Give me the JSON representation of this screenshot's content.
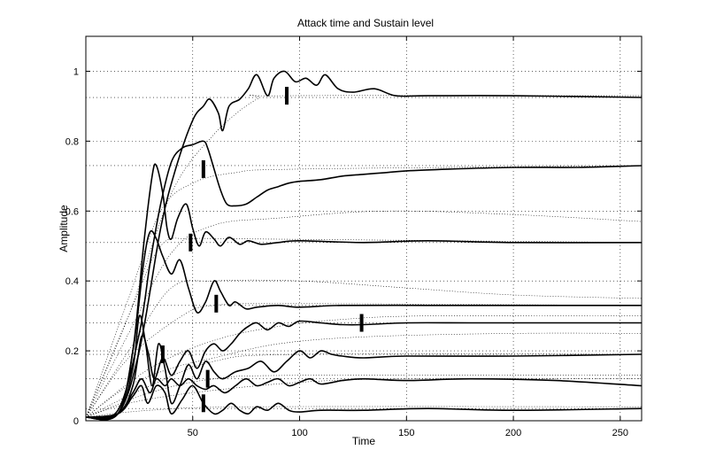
{
  "chart_data": {
    "type": "line",
    "title": "Attack time and Sustain level",
    "xlabel": "Time",
    "ylabel": "Amplitude",
    "xlim": [
      0,
      260
    ],
    "ylim": [
      0,
      1.1
    ],
    "xticks": [
      50,
      100,
      150,
      200,
      250
    ],
    "yticks": [
      0,
      0.2,
      0.4,
      0.6,
      0.8,
      1
    ],
    "ytick_labels": [
      "0",
      "0.2",
      "0.4",
      "0.6",
      "0.8",
      "1"
    ],
    "grid": true,
    "line_color": "#000000",
    "series": [
      {
        "points": [
          [
            0,
            0.01
          ],
          [
            15,
            0.02
          ],
          [
            25,
            0.2
          ],
          [
            35,
            0.55
          ],
          [
            42,
            0.72
          ],
          [
            50,
            0.86
          ],
          [
            55,
            0.9
          ],
          [
            58,
            0.92
          ],
          [
            62,
            0.88
          ],
          [
            64,
            0.83
          ],
          [
            67,
            0.9
          ],
          [
            72,
            0.92
          ],
          [
            76,
            0.95
          ],
          [
            80,
            0.99
          ],
          [
            85,
            0.93
          ],
          [
            88,
            0.98
          ],
          [
            93,
            1.0
          ],
          [
            98,
            0.97
          ],
          [
            103,
            0.98
          ],
          [
            108,
            0.96
          ],
          [
            112,
            0.99
          ],
          [
            118,
            0.95
          ],
          [
            125,
            0.94
          ],
          [
            135,
            0.95
          ],
          [
            145,
            0.93
          ],
          [
            160,
            0.93
          ],
          [
            200,
            0.93
          ],
          [
            260,
            0.925
          ]
        ]
      },
      {
        "points": [
          [
            0,
            0.01
          ],
          [
            15,
            0.03
          ],
          [
            25,
            0.25
          ],
          [
            30,
            0.45
          ],
          [
            35,
            0.62
          ],
          [
            40,
            0.74
          ],
          [
            45,
            0.78
          ],
          [
            50,
            0.79
          ],
          [
            55,
            0.8
          ],
          [
            57,
            0.78
          ],
          [
            60,
            0.72
          ],
          [
            63,
            0.66
          ],
          [
            66,
            0.62
          ],
          [
            70,
            0.615
          ],
          [
            75,
            0.62
          ],
          [
            80,
            0.64
          ],
          [
            85,
            0.66
          ],
          [
            90,
            0.67
          ],
          [
            95,
            0.68
          ],
          [
            100,
            0.685
          ],
          [
            110,
            0.69
          ],
          [
            120,
            0.7
          ],
          [
            130,
            0.705
          ],
          [
            140,
            0.71
          ],
          [
            150,
            0.715
          ],
          [
            170,
            0.72
          ],
          [
            200,
            0.725
          ],
          [
            230,
            0.725
          ],
          [
            260,
            0.73
          ]
        ]
      },
      {
        "points": [
          [
            0,
            0.01
          ],
          [
            15,
            0.02
          ],
          [
            22,
            0.2
          ],
          [
            27,
            0.5
          ],
          [
            31,
            0.7
          ],
          [
            33,
            0.73
          ],
          [
            36,
            0.65
          ],
          [
            38,
            0.55
          ],
          [
            40,
            0.52
          ],
          [
            43,
            0.58
          ],
          [
            47,
            0.62
          ],
          [
            50,
            0.55
          ],
          [
            53,
            0.5
          ],
          [
            56,
            0.54
          ],
          [
            60,
            0.52
          ],
          [
            63,
            0.5
          ],
          [
            67,
            0.525
          ],
          [
            72,
            0.505
          ],
          [
            76,
            0.515
          ],
          [
            82,
            0.505
          ],
          [
            90,
            0.51
          ],
          [
            100,
            0.515
          ],
          [
            130,
            0.51
          ],
          [
            160,
            0.515
          ],
          [
            200,
            0.51
          ],
          [
            260,
            0.51
          ]
        ]
      },
      {
        "points": [
          [
            0,
            0.01
          ],
          [
            15,
            0.02
          ],
          [
            22,
            0.2
          ],
          [
            27,
            0.45
          ],
          [
            30,
            0.54
          ],
          [
            33,
            0.52
          ],
          [
            36,
            0.47
          ],
          [
            40,
            0.42
          ],
          [
            44,
            0.46
          ],
          [
            48,
            0.38
          ],
          [
            52,
            0.31
          ],
          [
            56,
            0.34
          ],
          [
            60,
            0.4
          ],
          [
            63,
            0.37
          ],
          [
            67,
            0.33
          ],
          [
            70,
            0.34
          ],
          [
            75,
            0.32
          ],
          [
            80,
            0.325
          ],
          [
            90,
            0.33
          ],
          [
            100,
            0.325
          ],
          [
            120,
            0.33
          ],
          [
            160,
            0.33
          ],
          [
            200,
            0.33
          ],
          [
            260,
            0.33
          ]
        ]
      },
      {
        "points": [
          [
            0,
            0.01
          ],
          [
            15,
            0.02
          ],
          [
            22,
            0.1
          ],
          [
            26,
            0.24
          ],
          [
            29,
            0.2
          ],
          [
            32,
            0.12
          ],
          [
            36,
            0.18
          ],
          [
            40,
            0.13
          ],
          [
            44,
            0.17
          ],
          [
            48,
            0.2
          ],
          [
            52,
            0.15
          ],
          [
            56,
            0.2
          ],
          [
            60,
            0.22
          ],
          [
            64,
            0.2
          ],
          [
            68,
            0.22
          ],
          [
            72,
            0.25
          ],
          [
            76,
            0.27
          ],
          [
            80,
            0.28
          ],
          [
            85,
            0.26
          ],
          [
            90,
            0.28
          ],
          [
            95,
            0.27
          ],
          [
            100,
            0.285
          ],
          [
            110,
            0.28
          ],
          [
            120,
            0.275
          ],
          [
            130,
            0.275
          ],
          [
            150,
            0.28
          ],
          [
            180,
            0.28
          ],
          [
            220,
            0.28
          ],
          [
            260,
            0.28
          ]
        ]
      },
      {
        "points": [
          [
            0,
            0.01
          ],
          [
            15,
            0.02
          ],
          [
            22,
            0.15
          ],
          [
            25,
            0.3
          ],
          [
            28,
            0.22
          ],
          [
            31,
            0.1
          ],
          [
            34,
            0.22
          ],
          [
            37,
            0.15
          ],
          [
            40,
            0.05
          ],
          [
            44,
            0.1
          ],
          [
            48,
            0.16
          ],
          [
            52,
            0.12
          ],
          [
            56,
            0.17
          ],
          [
            60,
            0.14
          ],
          [
            64,
            0.12
          ],
          [
            70,
            0.14
          ],
          [
            76,
            0.15
          ],
          [
            82,
            0.17
          ],
          [
            88,
            0.14
          ],
          [
            94,
            0.17
          ],
          [
            100,
            0.2
          ],
          [
            105,
            0.18
          ],
          [
            110,
            0.2
          ],
          [
            115,
            0.19
          ],
          [
            120,
            0.185
          ],
          [
            130,
            0.18
          ],
          [
            150,
            0.185
          ],
          [
            200,
            0.185
          ],
          [
            260,
            0.19
          ]
        ]
      },
      {
        "points": [
          [
            0,
            0.01
          ],
          [
            15,
            0.02
          ],
          [
            22,
            0.08
          ],
          [
            26,
            0.12
          ],
          [
            30,
            0.08
          ],
          [
            33,
            0.12
          ],
          [
            37,
            0.1
          ],
          [
            40,
            0.12
          ],
          [
            44,
            0.1
          ],
          [
            48,
            0.12
          ],
          [
            52,
            0.1
          ],
          [
            56,
            0.09
          ],
          [
            60,
            0.1
          ],
          [
            65,
            0.08
          ],
          [
            70,
            0.1
          ],
          [
            75,
            0.12
          ],
          [
            80,
            0.1
          ],
          [
            85,
            0.11
          ],
          [
            90,
            0.12
          ],
          [
            95,
            0.1
          ],
          [
            100,
            0.11
          ],
          [
            105,
            0.12
          ],
          [
            110,
            0.105
          ],
          [
            120,
            0.115
          ],
          [
            130,
            0.12
          ],
          [
            150,
            0.115
          ],
          [
            180,
            0.12
          ],
          [
            220,
            0.115
          ],
          [
            260,
            0.1
          ]
        ]
      },
      {
        "points": [
          [
            0,
            0.01
          ],
          [
            15,
            0.02
          ],
          [
            22,
            0.07
          ],
          [
            26,
            0.1
          ],
          [
            29,
            0.05
          ],
          [
            33,
            0.1
          ],
          [
            37,
            0.08
          ],
          [
            40,
            0.02
          ],
          [
            45,
            0.06
          ],
          [
            50,
            0.1
          ],
          [
            55,
            0.05
          ],
          [
            60,
            0.02
          ],
          [
            64,
            0.03
          ],
          [
            68,
            0.05
          ],
          [
            72,
            0.03
          ],
          [
            76,
            0.02
          ],
          [
            80,
            0.04
          ],
          [
            85,
            0.03
          ],
          [
            90,
            0.05
          ],
          [
            95,
            0.03
          ],
          [
            100,
            0.025
          ],
          [
            110,
            0.03
          ],
          [
            130,
            0.03
          ],
          [
            160,
            0.035
          ],
          [
            200,
            0.03
          ],
          [
            260,
            0.035
          ]
        ]
      }
    ],
    "envelopes": [
      {
        "points": [
          [
            0,
            0.01
          ],
          [
            20,
            0.3
          ],
          [
            40,
            0.65
          ],
          [
            60,
            0.82
          ],
          [
            80,
            0.92
          ],
          [
            92,
            0.93
          ],
          [
            260,
            0.93
          ]
        ]
      },
      {
        "points": [
          [
            0,
            0.01
          ],
          [
            20,
            0.35
          ],
          [
            35,
            0.6
          ],
          [
            50,
            0.68
          ],
          [
            70,
            0.71
          ],
          [
            100,
            0.72
          ],
          [
            260,
            0.73
          ]
        ]
      },
      {
        "points": [
          [
            0,
            0.01
          ],
          [
            20,
            0.25
          ],
          [
            40,
            0.48
          ],
          [
            60,
            0.56
          ],
          [
            90,
            0.58
          ],
          [
            140,
            0.6
          ],
          [
            200,
            0.59
          ],
          [
            260,
            0.57
          ]
        ]
      },
      {
        "points": [
          [
            0,
            0.01
          ],
          [
            20,
            0.3
          ],
          [
            35,
            0.5
          ],
          [
            50,
            0.52
          ],
          [
            80,
            0.52
          ],
          [
            260,
            0.51
          ]
        ]
      },
      {
        "points": [
          [
            0,
            0.01
          ],
          [
            20,
            0.2
          ],
          [
            40,
            0.38
          ],
          [
            60,
            0.4
          ],
          [
            100,
            0.4
          ],
          [
            150,
            0.38
          ],
          [
            200,
            0.36
          ],
          [
            260,
            0.35
          ]
        ]
      },
      {
        "points": [
          [
            0,
            0.01
          ],
          [
            20,
            0.18
          ],
          [
            45,
            0.3
          ],
          [
            60,
            0.33
          ],
          [
            100,
            0.335
          ],
          [
            260,
            0.33
          ]
        ]
      },
      {
        "points": [
          [
            0,
            0.01
          ],
          [
            30,
            0.15
          ],
          [
            60,
            0.23
          ],
          [
            90,
            0.27
          ],
          [
            120,
            0.29
          ],
          [
            160,
            0.3
          ],
          [
            260,
            0.3
          ]
        ]
      },
      {
        "points": [
          [
            0,
            0.01
          ],
          [
            20,
            0.1
          ],
          [
            40,
            0.15
          ],
          [
            60,
            0.18
          ],
          [
            90,
            0.22
          ],
          [
            130,
            0.24
          ],
          [
            200,
            0.25
          ],
          [
            260,
            0.25
          ]
        ]
      },
      {
        "points": [
          [
            0,
            0.01
          ],
          [
            30,
            0.1
          ],
          [
            60,
            0.17
          ],
          [
            100,
            0.19
          ],
          [
            260,
            0.19
          ]
        ]
      },
      {
        "points": [
          [
            0,
            0.01
          ],
          [
            30,
            0.08
          ],
          [
            60,
            0.12
          ],
          [
            100,
            0.13
          ],
          [
            260,
            0.13
          ]
        ]
      },
      {
        "points": [
          [
            0,
            0.01
          ],
          [
            20,
            0.05
          ],
          [
            50,
            0.08
          ],
          [
            100,
            0.11
          ],
          [
            150,
            0.12
          ],
          [
            260,
            0.12
          ]
        ]
      },
      {
        "points": [
          [
            0,
            0.01
          ],
          [
            30,
            0.03
          ],
          [
            80,
            0.04
          ],
          [
            260,
            0.04
          ]
        ]
      }
    ],
    "sustain_levels": [
      0.925,
      0.73,
      0.51,
      0.33,
      0.28,
      0.19,
      0.12,
      0.035
    ],
    "attack_markers": [
      {
        "x": 94,
        "y": 0.93
      },
      {
        "x": 55,
        "y": 0.72
      },
      {
        "x": 49,
        "y": 0.51
      },
      {
        "x": 61,
        "y": 0.335
      },
      {
        "x": 129,
        "y": 0.28
      },
      {
        "x": 36,
        "y": 0.19
      },
      {
        "x": 57,
        "y": 0.12
      },
      {
        "x": 55,
        "y": 0.05
      }
    ]
  }
}
